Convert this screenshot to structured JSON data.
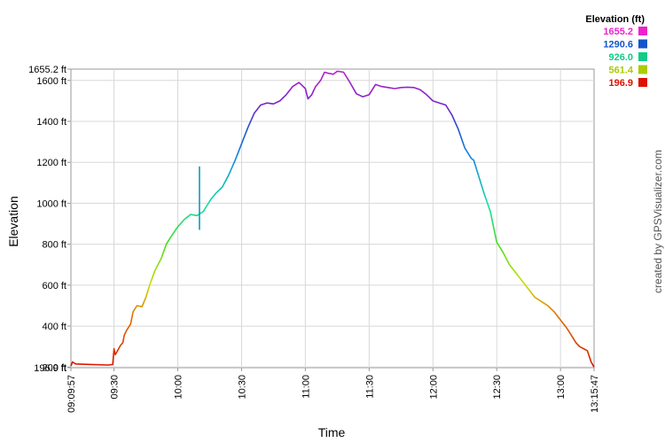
{
  "chart_data": {
    "type": "line",
    "xlabel": "Time",
    "ylabel": "Elevation",
    "credit": "created by GPSVisualizer.com",
    "legend": {
      "title": "Elevation (ft)",
      "placement": "top-right",
      "entries": [
        {
          "label": "1655.2",
          "color": "#ee22cc"
        },
        {
          "label": "1290.6",
          "color": "#1155cc"
        },
        {
          "label": "926.0",
          "color": "#11cc88"
        },
        {
          "label": "561.4",
          "color": "#aacc00"
        },
        {
          "label": "196.9",
          "color": "#dd1100"
        }
      ]
    },
    "ylim": [
      196.9,
      1655.2
    ],
    "xlim_min": [
      9.1625,
      13.2631
    ],
    "yticks": [
      {
        "value": 1655.2,
        "label": "1655.2 ft"
      },
      {
        "value": 1600,
        "label": "1600 ft"
      },
      {
        "value": 1400,
        "label": "1400 ft"
      },
      {
        "value": 1200,
        "label": "1200 ft"
      },
      {
        "value": 1000,
        "label": "1000 ft"
      },
      {
        "value": 800,
        "label": "800 ft"
      },
      {
        "value": 600,
        "label": "600 ft"
      },
      {
        "value": 400,
        "label": "400 ft"
      },
      {
        "value": 200,
        "label": "200 ft"
      },
      {
        "value": 196.9,
        "label": "196.9 ft"
      }
    ],
    "xticks": [
      {
        "value": 9.1625,
        "label": "09:09:57"
      },
      {
        "value": 9.5,
        "label": "09:30"
      },
      {
        "value": 10.0,
        "label": "10:00"
      },
      {
        "value": 10.5,
        "label": "10:30"
      },
      {
        "value": 11.0,
        "label": "11:00"
      },
      {
        "value": 11.5,
        "label": "11:30"
      },
      {
        "value": 12.0,
        "label": "12:00"
      },
      {
        "value": 12.5,
        "label": "12:30"
      },
      {
        "value": 13.0,
        "label": "13:00"
      },
      {
        "value": 13.2631,
        "label": "13:15:47"
      }
    ],
    "grid": true,
    "series": [
      {
        "x": [
          9.1625,
          9.175,
          9.2,
          9.3,
          9.45,
          9.49,
          9.5,
          9.51,
          9.55,
          9.57,
          9.58,
          9.6,
          9.63,
          9.65,
          9.68,
          9.72,
          9.75,
          9.78,
          9.82,
          9.87,
          9.91,
          9.95,
          10.0,
          10.05,
          10.1,
          10.15,
          10.2,
          10.22,
          10.26,
          10.3,
          10.35,
          10.4,
          10.45,
          10.5,
          10.55,
          10.6,
          10.65,
          10.7,
          10.75,
          10.8,
          10.85,
          10.9,
          10.95,
          11.0,
          11.02,
          11.05,
          11.08,
          11.12,
          11.15,
          11.18,
          11.22,
          11.25,
          11.3,
          11.35,
          11.4,
          11.45,
          11.5,
          11.55,
          11.6,
          11.65,
          11.7,
          11.75,
          11.8,
          11.85,
          11.9,
          11.95,
          12.0,
          12.05,
          12.1,
          12.15,
          12.2,
          12.25,
          12.3,
          12.32,
          12.35,
          12.4,
          12.45,
          12.48,
          12.5,
          12.55,
          12.6,
          12.65,
          12.7,
          12.75,
          12.8,
          12.85,
          12.9,
          12.95,
          13.0,
          13.05,
          13.08,
          13.12,
          13.15,
          13.18,
          13.21,
          13.24,
          13.2631
        ],
        "y": [
          205,
          225,
          215,
          213,
          210,
          212,
          290,
          260,
          305,
          320,
          355,
          380,
          410,
          470,
          500,
          495,
          540,
          600,
          670,
          730,
          800,
          840,
          885,
          920,
          945,
          940,
          960,
          980,
          1020,
          1050,
          1080,
          1140,
          1210,
          1290,
          1370,
          1440,
          1480,
          1490,
          1485,
          1500,
          1530,
          1570,
          1590,
          1560,
          1510,
          1530,
          1570,
          1600,
          1640,
          1635,
          1630,
          1645,
          1640,
          1590,
          1535,
          1520,
          1530,
          1580,
          1570,
          1565,
          1560,
          1565,
          1567,
          1565,
          1555,
          1530,
          1500,
          1490,
          1480,
          1430,
          1360,
          1270,
          1220,
          1210,
          1150,
          1050,
          960,
          870,
          810,
          760,
          700,
          660,
          620,
          580,
          540,
          520,
          500,
          470,
          430,
          390,
          360,
          320,
          300,
          290,
          280,
          225,
          200
        ]
      }
    ],
    "spike": {
      "x": 10.17,
      "y": 1180
    }
  }
}
